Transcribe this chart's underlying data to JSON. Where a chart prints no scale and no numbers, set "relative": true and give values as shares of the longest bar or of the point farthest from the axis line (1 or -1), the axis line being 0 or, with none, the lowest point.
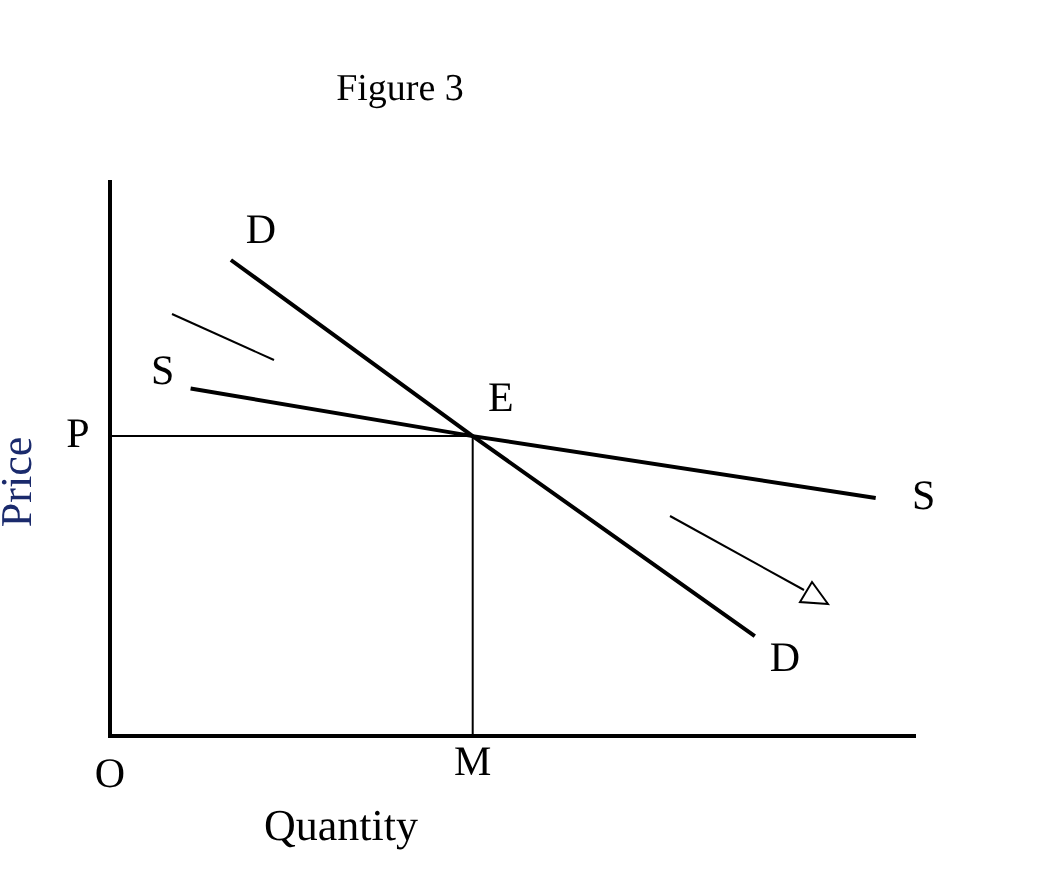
{
  "chart_data": {
    "type": "line",
    "title": "Figure 3",
    "xlabel": "Quantity",
    "ylabel": "Price",
    "relative": true,
    "marker": "none",
    "line_style": "solid",
    "categories": [
      null,
      null,
      null,
      null,
      null,
      null,
      null,
      null,
      null,
      null,
      null,
      null,
      null,
      null,
      null,
      null,
      null,
      null,
      null,
      null,
      null
    ],
    "series": [
      {
        "type": "line",
        "name": "D",
        "color": "#000000",
        "values": [
          null,
          null,
          null,
          1,
          null,
          null,
          null,
          null,
          null,
          0.63,
          null,
          null,
          null,
          null,
          null,
          null,
          0.21,
          null,
          null,
          null,
          null
        ]
      },
      {
        "type": "line",
        "name": "S",
        "color": "#000000",
        "values": [
          null,
          null,
          0.73,
          null,
          null,
          null,
          null,
          null,
          null,
          0.63,
          null,
          null,
          null,
          null,
          null,
          null,
          null,
          null,
          null,
          0.5,
          null
        ]
      },
      {
        "type": "line",
        "color": "#000000",
        "values": [
          0.63,
          null,
          null,
          null,
          null,
          null,
          null,
          null,
          null,
          0.63,
          null,
          null,
          null,
          null,
          null,
          null,
          null,
          null,
          null,
          null,
          null
        ]
      }
    ],
    "annotations": [
      "E",
      "P",
      "M",
      "O"
    ]
  }
}
